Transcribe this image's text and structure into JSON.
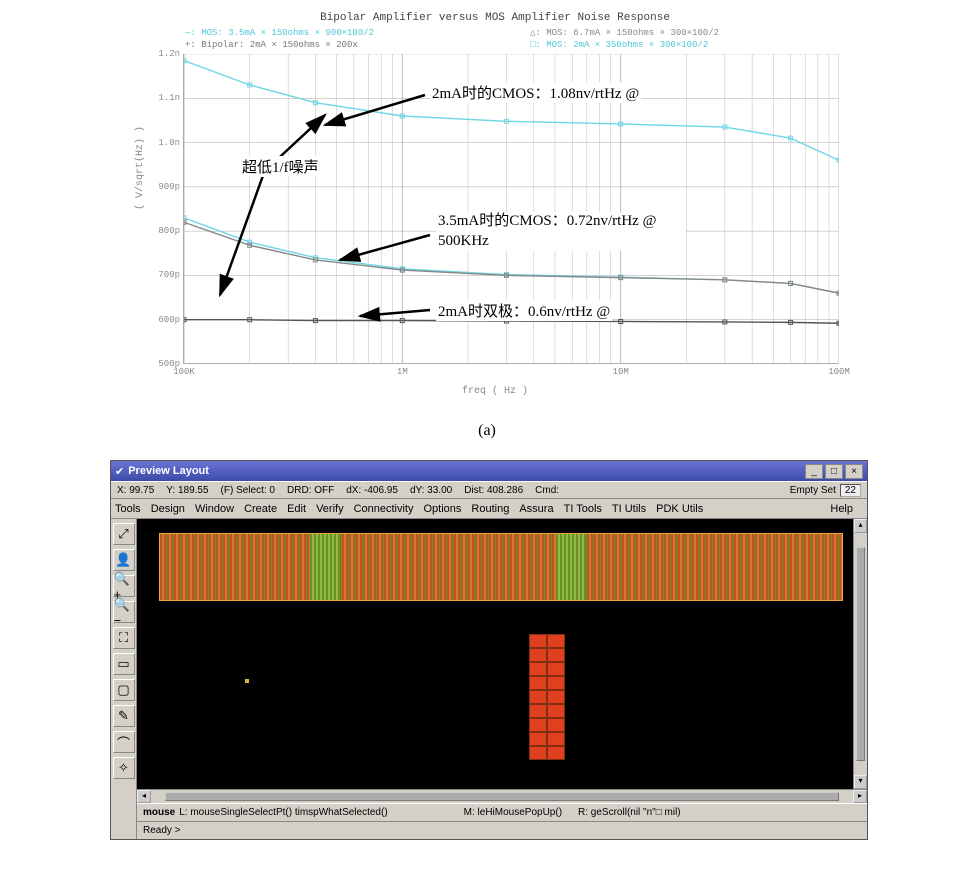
{
  "figA": {
    "title": "Bipolar Amplifier versus MOS Amplifier Noise Response",
    "legend": {
      "l1": "—: MOS: 3.5mA × 150ohms × 900×100/2",
      "l2": "+: Bipolar: 2mA × 150ohms × 200x",
      "l3": "△: MOS: 6.7mA × 150ohms × 300×100/2",
      "l4": "□: MOS: 2mA × 350ohms × 300×100/2"
    },
    "ylabel": "( V/sqrt(Hz) )",
    "xlabel": "freq ( Hz )",
    "yticks": [
      "1.2n",
      "1.1n",
      "1.0n",
      "900p",
      "800p",
      "700p",
      "600p",
      "500p"
    ],
    "yvals": [
      1200,
      1100,
      1000,
      900,
      800,
      700,
      600,
      500
    ],
    "xticks": [
      "100K",
      "1M",
      "10M",
      "100M"
    ],
    "xvals": [
      100000.0,
      1000000.0,
      10000000.0,
      100000000.0
    ],
    "ylim": [
      500,
      1200
    ],
    "xlim": [
      100000.0,
      100000000.0
    ],
    "grid_color": "#bbbbbb",
    "series": {
      "cmos2mA": {
        "color": "#6fd6e3",
        "data": [
          [
            100000.0,
            1185
          ],
          [
            200000.0,
            1130
          ],
          [
            400000.0,
            1090
          ],
          [
            1000000.0,
            1060
          ],
          [
            3000000.0,
            1048
          ],
          [
            10000000.0,
            1042
          ],
          [
            30000000.0,
            1035
          ],
          [
            60000000.0,
            1010
          ],
          [
            100000000.0,
            960
          ]
        ]
      },
      "cmos35mA": {
        "color": "#6fd6e3",
        "data": [
          [
            100000.0,
            830
          ],
          [
            200000.0,
            775
          ],
          [
            400000.0,
            740
          ],
          [
            1000000.0,
            715
          ],
          [
            3000000.0,
            702
          ],
          [
            10000000.0,
            696
          ],
          [
            30000000.0,
            690
          ],
          [
            60000000.0,
            682
          ],
          [
            100000000.0,
            660
          ]
        ]
      },
      "mos67": {
        "color": "#888888",
        "data": [
          [
            100000.0,
            820
          ],
          [
            200000.0,
            768
          ],
          [
            400000.0,
            735
          ],
          [
            1000000.0,
            712
          ],
          [
            3000000.0,
            700
          ],
          [
            10000000.0,
            695
          ],
          [
            30000000.0,
            690
          ],
          [
            60000000.0,
            682
          ],
          [
            100000000.0,
            660
          ]
        ]
      },
      "bipolar": {
        "color": "#555555",
        "data": [
          [
            100000.0,
            600
          ],
          [
            200000.0,
            600
          ],
          [
            400000.0,
            598
          ],
          [
            1000000.0,
            598
          ],
          [
            3000000.0,
            597
          ],
          [
            10000000.0,
            596
          ],
          [
            30000000.0,
            595
          ],
          [
            60000000.0,
            594
          ],
          [
            100000000.0,
            592
          ]
        ]
      }
    },
    "annotations": {
      "a1": "2mA时的CMOS：1.08nv/rtHz @",
      "a2": "超低1/f噪声",
      "a3": "3.5mA时的CMOS：0.72nv/rtHz @ 500KHz",
      "a4": "2mA时双极：0.6nv/rtHz @"
    },
    "caption": "(a)"
  },
  "figB": {
    "title": "Preview Layout",
    "status": {
      "x": "X: 99.75",
      "y": "Y: 189.55",
      "sel": "(F) Select: 0",
      "drd": "DRD: OFF",
      "dx": "dX: -406.95",
      "dy": "dY: 33.00",
      "dist": "Dist: 408.286",
      "cmd": "Cmd:",
      "empty": "Empty Set",
      "count": "22"
    },
    "menus": [
      "Tools",
      "Design",
      "Window",
      "Create",
      "Edit",
      "Verify",
      "Connectivity",
      "Options",
      "Routing",
      "Assura",
      "TI Tools",
      "TI Utils",
      "PDK Utils"
    ],
    "help": "Help",
    "toolbar": [
      "⤢",
      "👤",
      "🔍+",
      "🔍−",
      "⛶",
      "▭",
      "▢",
      "✎",
      "⌒",
      "✧"
    ],
    "mouse": {
      "label": "mouse",
      "L": "L: mouseSingleSelectPt() timspWhatSelected()",
      "M": "M: leHiMousePopUp()",
      "R": "R: geScroll(nil \"n\"□   mil)"
    },
    "ready": "Ready >",
    "layout_colors": {
      "bg": "#000000",
      "metal": "#d87830",
      "poly": "#6b8f2a",
      "active": "#e04020"
    }
  }
}
